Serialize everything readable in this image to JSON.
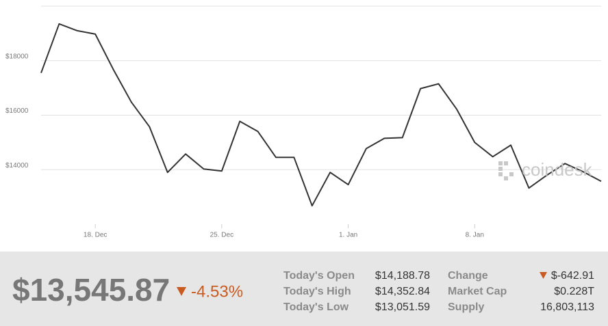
{
  "chart_data": {
    "type": "line",
    "categories": [
      null,
      null,
      null,
      "18. Dec",
      null,
      null,
      null,
      null,
      null,
      null,
      "25. Dec",
      null,
      null,
      null,
      null,
      null,
      null,
      "1. Jan",
      null,
      null,
      null,
      null,
      null,
      null,
      "8. Jan",
      null,
      null,
      null,
      null,
      null,
      null,
      null
    ],
    "values": [
      17550,
      19350,
      19100,
      18975,
      17675,
      16475,
      15575,
      13900,
      14575,
      14025,
      13950,
      15775,
      15400,
      14450,
      14450,
      12675,
      13900,
      13450,
      14775,
      15150,
      15175,
      16975,
      17150,
      16225,
      15000,
      14475,
      14900,
      13325,
      13800,
      14225,
      13925,
      13575
    ],
    "color": "#333333",
    "ylim": [
      12000,
      20000
    ],
    "yticks": [
      {
        "value": 14000,
        "label": "$14000"
      },
      {
        "value": 16000,
        "label": "$16000"
      },
      {
        "value": 18000,
        "label": "$18000"
      }
    ],
    "grid": true,
    "watermark": "coindesk"
  },
  "summary": {
    "price": "$13,545.87",
    "percent_change": "-4.53%",
    "rows": [
      [
        "Today's Open",
        "$14,188.78",
        "Change",
        "$-642.91"
      ],
      [
        "Today's High",
        "$14,352.84",
        "Market Cap",
        "$0.228T"
      ],
      [
        "Today's Low",
        "$13,051.59",
        "Supply",
        "16,803,113"
      ]
    ]
  }
}
